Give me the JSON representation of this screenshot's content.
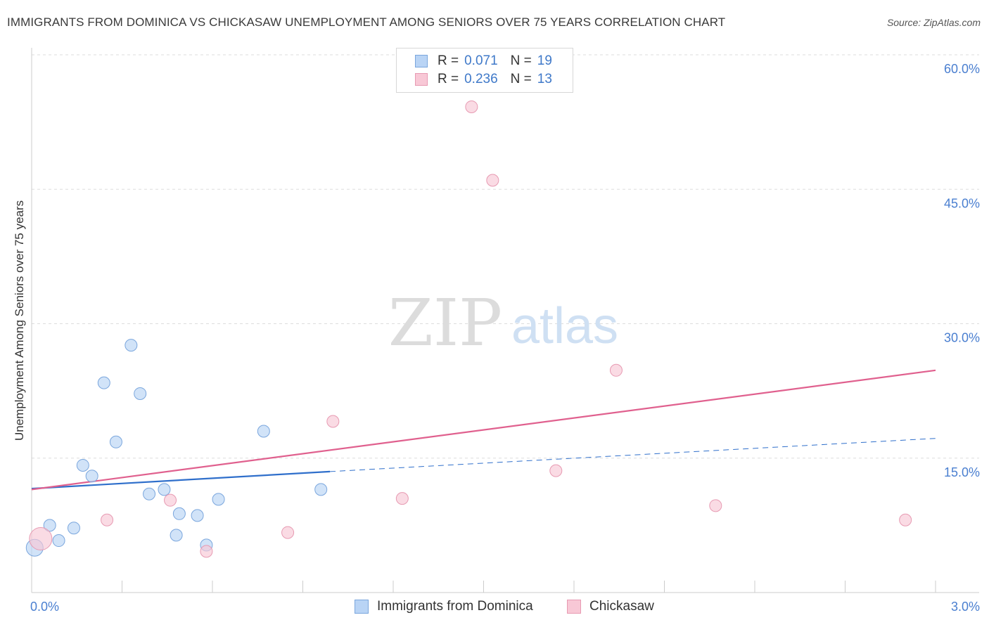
{
  "title": "IMMIGRANTS FROM DOMINICA VS CHICKASAW UNEMPLOYMENT AMONG SENIORS OVER 75 YEARS CORRELATION CHART",
  "source": "Source: ZipAtlas.com",
  "watermark": {
    "zip": "ZIP",
    "atlas": "atlas"
  },
  "legend_top": {
    "r_label": "R =",
    "n_label": "N =",
    "rows": [
      {
        "r": "0.071",
        "n": "19",
        "color": "#b9d4f5"
      },
      {
        "r": "0.236",
        "n": "13",
        "color": "#f8c8d6"
      }
    ]
  },
  "legend_bottom": [
    {
      "label": "Immigrants from Dominica",
      "color": "#b9d4f5"
    },
    {
      "label": "Chickasaw",
      "color": "#f8c8d6"
    }
  ],
  "colors": {
    "blue_line": "#2f6fcb",
    "pink_line": "#e0608e",
    "tick_text": "#4a7fd0",
    "grid": "#dddddd"
  },
  "chart_data": {
    "type": "scatter",
    "title": "IMMIGRANTS FROM DOMINICA VS CHICKASAW UNEMPLOYMENT AMONG SENIORS OVER 75 YEARS CORRELATION CHART",
    "xlabel": "",
    "ylabel": "Unemployment Among Seniors over 75 years",
    "xlim": [
      0,
      3.0
    ],
    "ylim": [
      0,
      60
    ],
    "x_tick_labels": [
      "0.0%",
      "3.0%"
    ],
    "y_ticks": [
      15,
      30,
      45,
      60
    ],
    "y_tick_labels": [
      "15.0%",
      "30.0%",
      "45.0%",
      "60.0%"
    ],
    "grid": true,
    "series": [
      {
        "name": "Immigrants from Dominica",
        "color": "#b9d4f5",
        "stroke": "#7aa6dd",
        "points": [
          {
            "x": 0.01,
            "y": 5.0,
            "size": 12
          },
          {
            "x": 0.06,
            "y": 7.5
          },
          {
            "x": 0.09,
            "y": 5.8
          },
          {
            "x": 0.14,
            "y": 7.2
          },
          {
            "x": 0.17,
            "y": 14.2
          },
          {
            "x": 0.2,
            "y": 13.0
          },
          {
            "x": 0.24,
            "y": 23.4
          },
          {
            "x": 0.28,
            "y": 16.8
          },
          {
            "x": 0.33,
            "y": 27.6
          },
          {
            "x": 0.36,
            "y": 22.2
          },
          {
            "x": 0.39,
            "y": 11.0
          },
          {
            "x": 0.44,
            "y": 11.5
          },
          {
            "x": 0.48,
            "y": 6.4
          },
          {
            "x": 0.49,
            "y": 8.8
          },
          {
            "x": 0.55,
            "y": 8.6
          },
          {
            "x": 0.58,
            "y": 5.3
          },
          {
            "x": 0.62,
            "y": 10.4
          },
          {
            "x": 0.77,
            "y": 18.0
          },
          {
            "x": 0.96,
            "y": 11.5
          }
        ],
        "trend": {
          "x0": 0.0,
          "y0": 11.6,
          "x1": 0.99,
          "y1": 13.5,
          "dash_to_x": 3.0,
          "dash_to_y": 17.2
        }
      },
      {
        "name": "Chickasaw",
        "color": "#f8c8d6",
        "stroke": "#e79ab2",
        "points": [
          {
            "x": 0.03,
            "y": 6.0,
            "size": 16
          },
          {
            "x": 0.25,
            "y": 8.1
          },
          {
            "x": 0.46,
            "y": 10.3
          },
          {
            "x": 0.58,
            "y": 4.6
          },
          {
            "x": 0.85,
            "y": 6.7
          },
          {
            "x": 1.0,
            "y": 19.1
          },
          {
            "x": 1.23,
            "y": 10.5
          },
          {
            "x": 1.46,
            "y": 54.2
          },
          {
            "x": 1.53,
            "y": 46.0
          },
          {
            "x": 1.74,
            "y": 13.6
          },
          {
            "x": 1.94,
            "y": 24.8
          },
          {
            "x": 2.27,
            "y": 9.7
          },
          {
            "x": 2.9,
            "y": 8.1
          }
        ],
        "trend": {
          "x0": 0.0,
          "y0": 11.5,
          "x1": 3.0,
          "y1": 24.8
        }
      }
    ]
  }
}
